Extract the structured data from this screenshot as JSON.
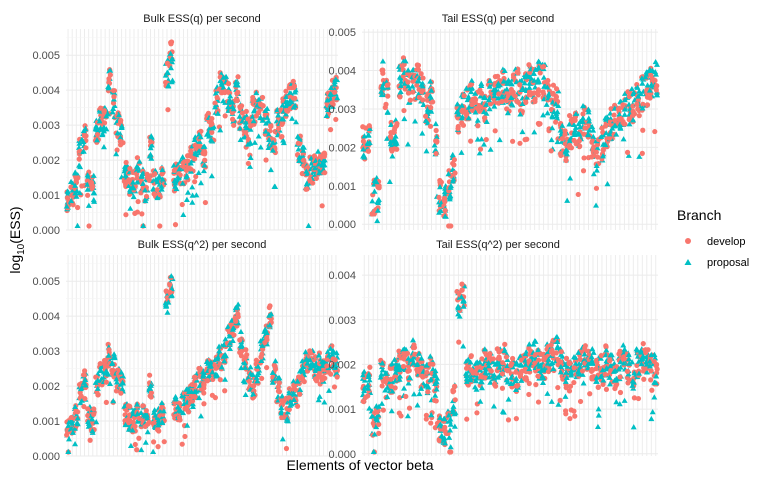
{
  "chart_data": {
    "type": "scatter",
    "facet_grid": "2x2",
    "xlabel": "Elements of vector beta",
    "ylabel_main": "log",
    "ylabel_sub": "10",
    "ylabel_tail": "(ESS)",
    "n_elements": 66,
    "x_ticks_shown": false,
    "grid": true,
    "legend": {
      "title": "Branch",
      "placement": "right",
      "entries": [
        {
          "name": "develop",
          "color": "#F8766D",
          "marker": "circle"
        },
        {
          "name": "proposal",
          "color": "#00BFC4",
          "marker": "triangle"
        }
      ]
    },
    "panels": [
      {
        "title": "Bulk ESS(q) per second",
        "ylim": [
          0,
          0.00575
        ],
        "yticks": [
          "0.000",
          "0.001",
          "0.002",
          "0.003",
          "0.004",
          "0.005"
        ],
        "yvalues": [
          0,
          0.001,
          0.002,
          0.003,
          0.004,
          0.005
        ],
        "element_centers": [
          0.00095,
          0.0011,
          0.0013,
          0.0022,
          0.0026,
          0.0013,
          0.0012,
          0.0028,
          0.0031,
          0.0032,
          0.0043,
          0.0036,
          0.003,
          0.0028,
          0.0016,
          0.0014,
          0.0013,
          0.0017,
          0.0014,
          0.0012,
          0.0024,
          0.0013,
          0.0012,
          0.0014,
          0.0045,
          0.005,
          0.0015,
          0.0016,
          0.0017,
          0.0018,
          0.002,
          0.0023,
          0.0025,
          0.002,
          0.003,
          0.0028,
          0.0037,
          0.0041,
          0.004,
          0.0038,
          0.0033,
          0.0041,
          0.0032,
          0.003,
          0.0028,
          0.0034,
          0.0036,
          0.0034,
          0.0031,
          0.0027,
          0.0025,
          0.0031,
          0.0034,
          0.0036,
          0.0038,
          0.0039,
          0.0023,
          0.002,
          0.0015,
          0.0017,
          0.0018,
          0.0019,
          0.002,
          0.0036,
          0.0039,
          0.004
        ],
        "element_spread": 0.0004
      },
      {
        "title": "Tail ESS(q) per second",
        "ylim": [
          -0.00015,
          0.00508
        ],
        "yticks": [
          "0.000",
          "0.001",
          "0.002",
          "0.003",
          "0.004",
          "0.005"
        ],
        "yvalues": [
          0,
          0.001,
          0.002,
          0.003,
          0.004,
          0.005
        ],
        "element_centers": [
          0.0021,
          0.0022,
          0.0007,
          0.0008,
          0.0038,
          0.0033,
          0.0022,
          0.0024,
          0.0037,
          0.0039,
          0.0036,
          0.0037,
          0.0037,
          0.0035,
          0.003,
          0.0033,
          0.0022,
          0.0007,
          0.0006,
          0.001,
          0.0014,
          0.0028,
          0.003,
          0.0031,
          0.0033,
          0.003,
          0.0032,
          0.0031,
          0.0034,
          0.0035,
          0.0034,
          0.0036,
          0.0033,
          0.0035,
          0.0036,
          0.0033,
          0.0035,
          0.0037,
          0.0036,
          0.0038,
          0.0037,
          0.0033,
          0.0032,
          0.0031,
          0.0022,
          0.002,
          0.0024,
          0.0025,
          0.0023,
          0.0027,
          0.0026,
          0.0022,
          0.0018,
          0.0021,
          0.0024,
          0.0026,
          0.0027,
          0.0029,
          0.003,
          0.003,
          0.0031,
          0.0032,
          0.0034,
          0.0035,
          0.0037,
          0.0038
        ],
        "element_spread": 0.00045
      },
      {
        "title": "Bulk ESS(q^2) per second",
        "ylim": [
          0,
          0.00575
        ],
        "yticks": [
          "0.000",
          "0.001",
          "0.002",
          "0.003",
          "0.004",
          "0.005"
        ],
        "yvalues": [
          0,
          0.001,
          0.002,
          0.003,
          0.004,
          0.005
        ],
        "element_centers": [
          0.0008,
          0.0009,
          0.0011,
          0.0018,
          0.0022,
          0.0011,
          0.001,
          0.002,
          0.0023,
          0.0024,
          0.0029,
          0.0026,
          0.0022,
          0.0021,
          0.0012,
          0.0011,
          0.001,
          0.0013,
          0.0011,
          0.001,
          0.002,
          0.0011,
          0.001,
          0.0012,
          0.0044,
          0.0048,
          0.0014,
          0.0013,
          0.0015,
          0.0016,
          0.0017,
          0.002,
          0.0022,
          0.0021,
          0.0024,
          0.0025,
          0.0026,
          0.0028,
          0.003,
          0.0034,
          0.0036,
          0.004,
          0.0032,
          0.0028,
          0.0022,
          0.002,
          0.0024,
          0.003,
          0.0035,
          0.004,
          0.0024,
          0.0019,
          0.0014,
          0.0013,
          0.0016,
          0.0018,
          0.0021,
          0.0024,
          0.0027,
          0.0028,
          0.0025,
          0.0026,
          0.0024,
          0.0027,
          0.0029,
          0.0026
        ],
        "element_spread": 0.00035
      },
      {
        "title": "Tail ESS(q^2) per second",
        "ylim": [
          -5e-05,
          0.00445
        ],
        "yticks": [
          "0.000",
          "0.001",
          "0.002",
          "0.003",
          "0.004"
        ],
        "yvalues": [
          0,
          0.001,
          0.002,
          0.003,
          0.004
        ],
        "element_centers": [
          0.0015,
          0.0016,
          0.0006,
          0.0008,
          0.0018,
          0.0016,
          0.0017,
          0.0018,
          0.002,
          0.0021,
          0.0019,
          0.0022,
          0.002,
          0.0018,
          0.0017,
          0.0019,
          0.0015,
          0.0006,
          0.0005,
          0.0007,
          0.0012,
          0.0034,
          0.0036,
          0.0018,
          0.0019,
          0.0017,
          0.0018,
          0.002,
          0.0019,
          0.0018,
          0.002,
          0.0021,
          0.0019,
          0.0018,
          0.0017,
          0.0019,
          0.002,
          0.0021,
          0.0022,
          0.002,
          0.0019,
          0.0021,
          0.0022,
          0.0023,
          0.002,
          0.0018,
          0.0017,
          0.0019,
          0.002,
          0.0021,
          0.0022,
          0.002,
          0.0018,
          0.0019,
          0.0021,
          0.0019,
          0.0018,
          0.002,
          0.0021,
          0.0019,
          0.0018,
          0.002,
          0.0022,
          0.0021,
          0.002,
          0.0019
        ],
        "element_spread": 0.00035
      }
    ]
  }
}
